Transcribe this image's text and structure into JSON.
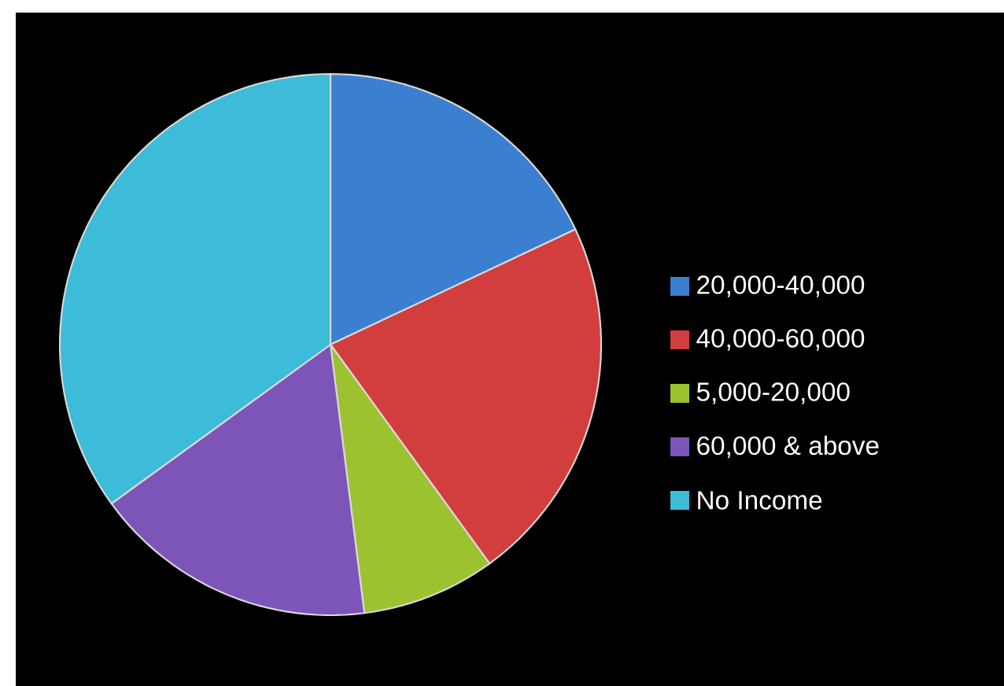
{
  "chart_data": {
    "type": "pie",
    "categories": [
      "20,000-40,000",
      "40,000-60,000",
      "5,000-20,000",
      "60,000 & above",
      "No Income"
    ],
    "values": [
      18,
      22,
      8,
      17,
      35
    ],
    "colors": [
      "#3b7fd1",
      "#d23d3d",
      "#9cc230",
      "#7d55b8",
      "#3cbcd9"
    ],
    "legend": "right"
  }
}
